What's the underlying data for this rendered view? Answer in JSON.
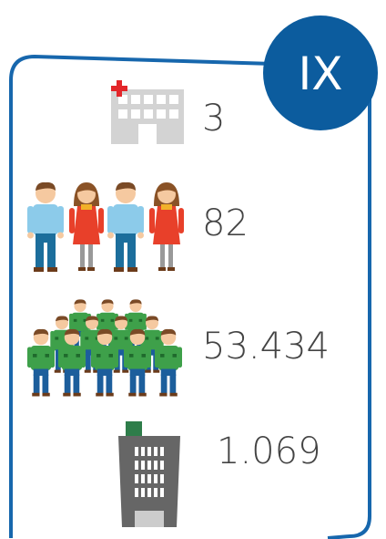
{
  "badge": "IX",
  "items": [
    "3",
    "82",
    "53.434",
    "1.069"
  ]
}
